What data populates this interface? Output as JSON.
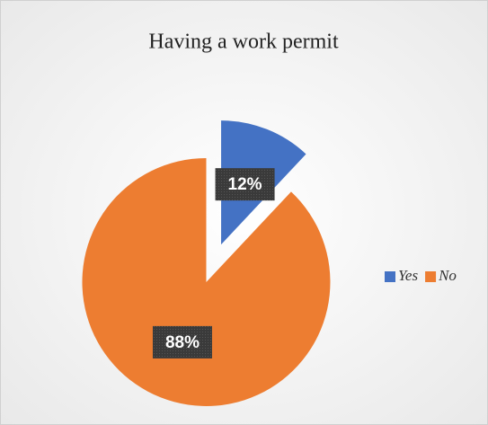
{
  "chart_data": {
    "type": "pie",
    "title": "Having a work permit",
    "categories": [
      "Yes",
      "No"
    ],
    "values": [
      12,
      88
    ],
    "value_labels": [
      "12%",
      "88%"
    ],
    "colors": [
      "#4472c4",
      "#ed7d31"
    ],
    "legend": "right"
  }
}
